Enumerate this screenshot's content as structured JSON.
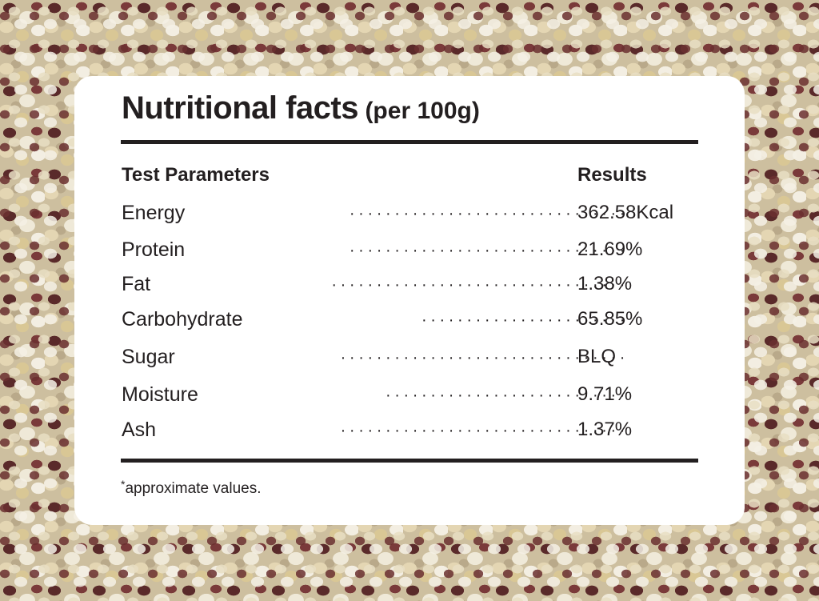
{
  "card": {
    "title": "Nutritional facts",
    "title_unit": "(per 100g)",
    "header_left": "Test Parameters",
    "header_right": "Results",
    "rows": [
      {
        "name": "Energy",
        "value": "362.58Kcal"
      },
      {
        "name": "Protein",
        "value": "21.69%"
      },
      {
        "name": "Fat",
        "value": "1.38%"
      },
      {
        "name": "Carbohydrate",
        "value": "65.85%"
      },
      {
        "name": "Sugar",
        "value": "BLQ"
      },
      {
        "name": "Moisture",
        "value": "9.71%"
      },
      {
        "name": "Ash",
        "value": "1.37%"
      }
    ],
    "footnote_mark": "*",
    "footnote": "approximate values."
  },
  "colors": {
    "text": "#231f20",
    "card": "#ffffff"
  }
}
